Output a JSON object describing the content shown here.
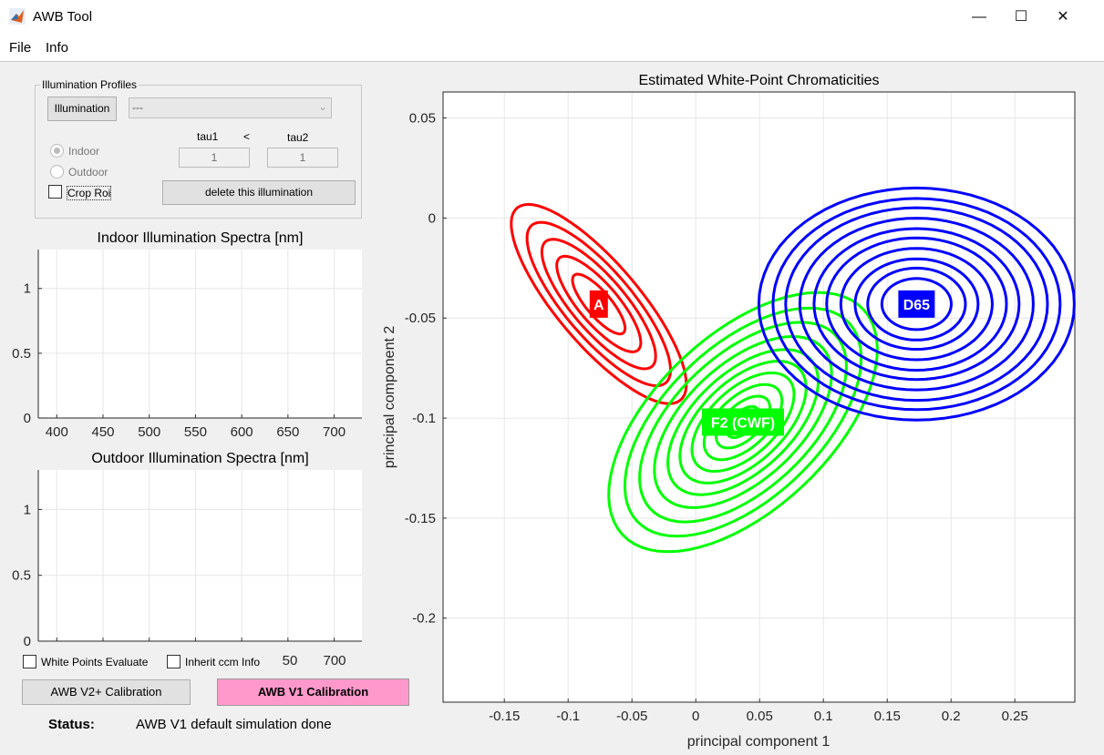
{
  "window": {
    "title": "AWB Tool",
    "minimize": "—",
    "maximize": "☐",
    "close": "✕"
  },
  "menu": [
    "File",
    "Info"
  ],
  "profiles": {
    "group_title": "Illumination Profiles",
    "illumination_button": "Illumination",
    "dropdown_value": "---",
    "tau1_label": "tau1",
    "lt": "<",
    "tau2_label": "tau2",
    "tau1_value": "1",
    "tau2_value": "1",
    "indoor": "Indoor",
    "outdoor": "Outdoor",
    "crop_roi": "Crop Roi",
    "delete_button": "delete this illumination"
  },
  "white_points_evaluate": "White Points Evaluate",
  "inherit_ccm": "Inherit ccm Info",
  "v2_button": "AWB V2+ Calibration",
  "v1_button": "AWB V1 Calibration",
  "status_label": "Status:",
  "status_text": "AWB V1 default simulation done",
  "colors": {
    "red": "#ff0000",
    "green": "#00ff00",
    "blue": "#0000ff",
    "v1_button": "#ff99cc"
  },
  "chart_data": [
    {
      "type": "line",
      "title": "Indoor Illumination Spectra [nm]",
      "xlim": [
        380,
        730
      ],
      "ylim": [
        0,
        1.3
      ],
      "xticks": [
        400,
        450,
        500,
        550,
        600,
        650,
        700
      ],
      "yticks": [
        0,
        0.5,
        1
      ],
      "series": []
    },
    {
      "type": "line",
      "title": "Outdoor Illumination Spectra [nm]",
      "xlim": [
        380,
        730
      ],
      "ylim": [
        0,
        1.3
      ],
      "xticks": [
        400,
        450,
        500,
        550,
        600,
        650,
        700
      ],
      "visible_xtick_labels": [
        "50",
        "700"
      ],
      "yticks": [
        0,
        0.5,
        1
      ],
      "series": []
    },
    {
      "type": "contour",
      "title": "Estimated White-Point Chromaticities",
      "xlabel": "principal component 1",
      "ylabel": "principal component 2",
      "xlim": [
        -0.198,
        0.297
      ],
      "ylim": [
        -0.242,
        0.063
      ],
      "grid": true,
      "xticks": [
        -0.15,
        -0.1,
        -0.05,
        0,
        0.05,
        0.1,
        0.15,
        0.2,
        0.25
      ],
      "xtick_labels": [
        "-0.15",
        "-0.1",
        "-0.05",
        "0",
        "0.05",
        "0.1",
        "0.15",
        "0.2",
        "0.25"
      ],
      "yticks": [
        0.05,
        0,
        -0.05,
        -0.1,
        -0.15,
        -0.2
      ],
      "ytick_labels": [
        "0.05",
        "0",
        "-0.05",
        "-0.1",
        "-0.15",
        "-0.2"
      ],
      "series": [
        {
          "name": "A",
          "color": "#ff0000",
          "center": [
            -0.076,
            -0.043
          ],
          "semi_axes": [
            0.081,
            0.025
          ],
          "angle_deg": -34,
          "levels": [
            0.3,
            0.48,
            0.65,
            0.82,
            1
          ]
        },
        {
          "name": "F2 (CWF)",
          "color": "#00ff00",
          "center": [
            0.037,
            -0.102
          ],
          "semi_axes": [
            0.113,
            0.05
          ],
          "angle_deg": 24,
          "levels": [
            0.12,
            0.2,
            0.29,
            0.38,
            0.47,
            0.56,
            0.66,
            0.77,
            0.88,
            1
          ]
        },
        {
          "name": "D65",
          "color": "#0000ff",
          "center": [
            0.173,
            -0.043
          ],
          "semi_axes": [
            0.1236,
            0.058
          ],
          "angle_deg": 0,
          "levels": [
            0.22,
            0.31,
            0.39,
            0.48,
            0.57,
            0.65,
            0.74,
            0.83,
            0.91,
            1
          ]
        }
      ]
    }
  ]
}
